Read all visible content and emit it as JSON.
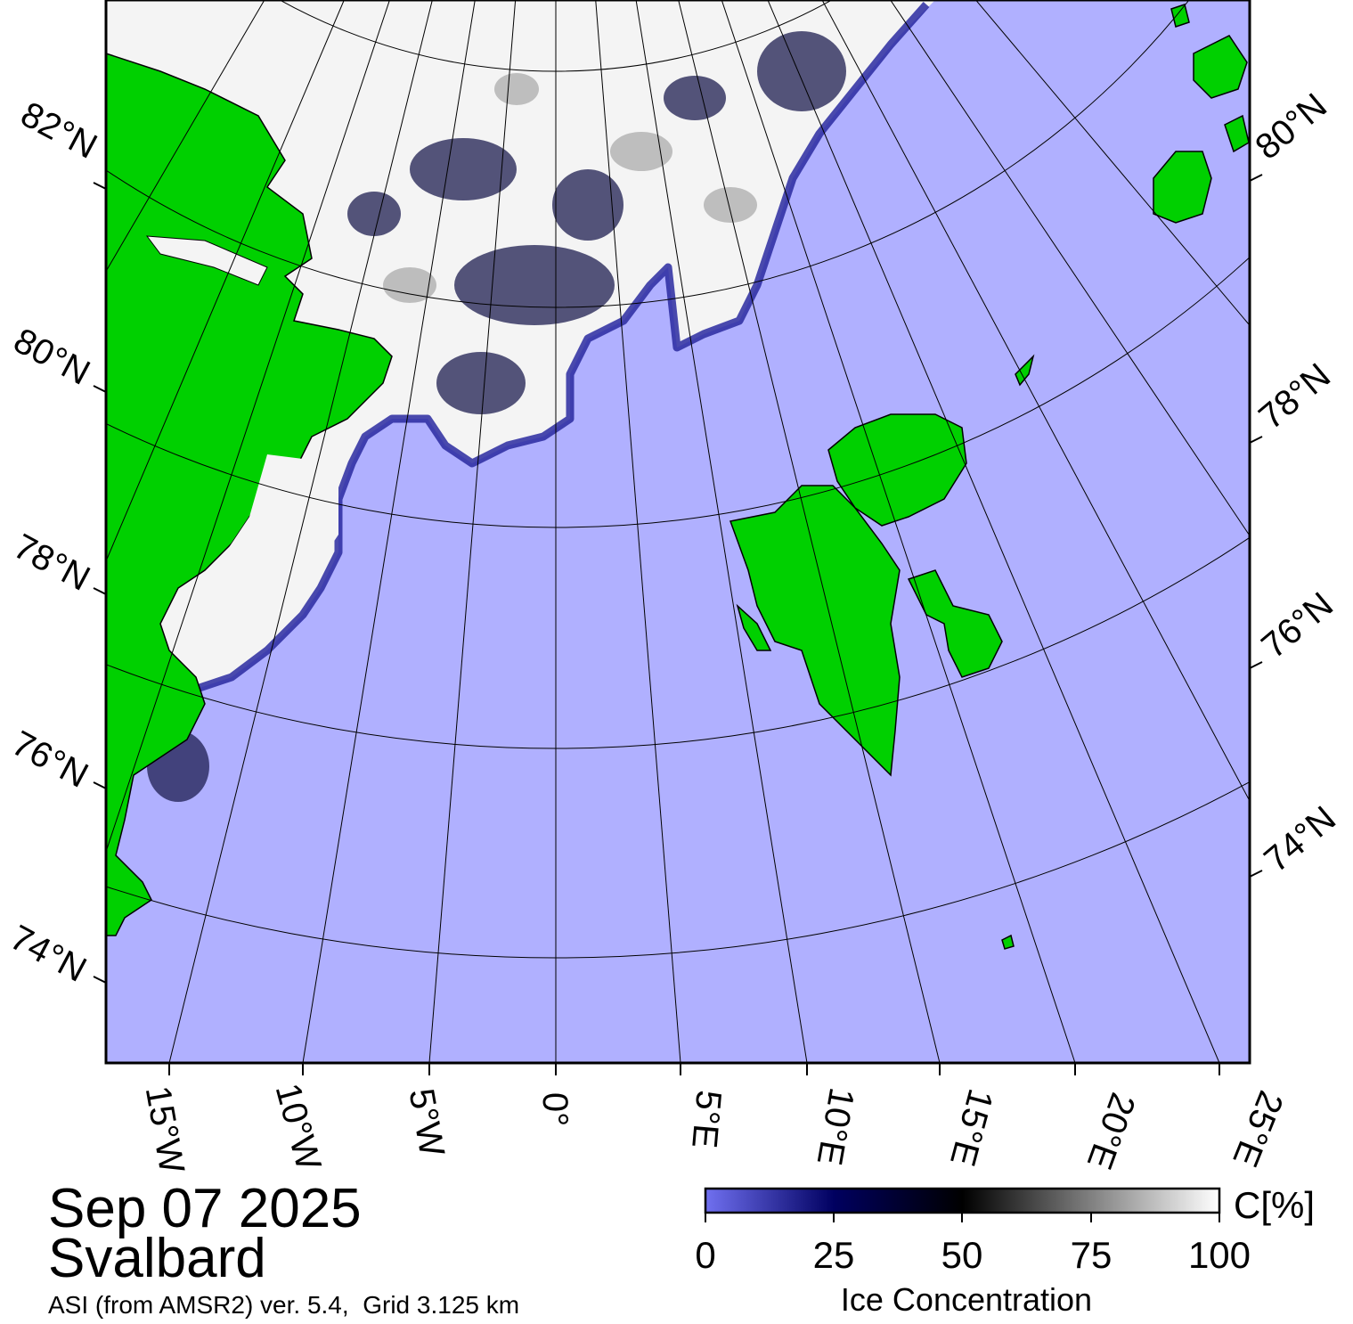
{
  "date": "Sep 07 2025",
  "region": "Svalbard",
  "source": "ASI (from AMSR2) ver. 5.4,  Grid 3.125 km",
  "colorbar": {
    "unit_label": "C[%]",
    "title": "Ice Concentration",
    "ticks": [
      "0",
      "25",
      "50",
      "75",
      "100"
    ],
    "colors": [
      "#7070f0",
      "#000060",
      "#000000",
      "#808080",
      "#ffffff"
    ]
  },
  "left_lat_labels": [
    "82°N",
    "80°N",
    "78°N",
    "76°N",
    "74°N"
  ],
  "right_lat_labels": [
    "80°N",
    "78°N",
    "76°N",
    "74°N"
  ],
  "lon_labels": [
    "15°W",
    "10°W",
    "5°W",
    "0°",
    "5°E",
    "10°E",
    "15°E",
    "20°E",
    "25°E"
  ],
  "colors": {
    "ocean": "#b0b0ff",
    "land": "#00d000",
    "ice": "#ffffff",
    "ice_edge": "#1a1a80",
    "grid": "#000000"
  }
}
